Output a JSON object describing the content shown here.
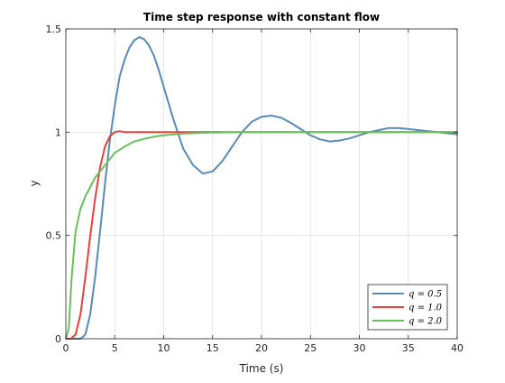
{
  "chart_data": {
    "type": "line",
    "title": "Time step response with constant flow",
    "xlabel": "Time (s)",
    "ylabel": "y",
    "xlim": [
      0,
      40
    ],
    "ylim": [
      0,
      1.5
    ],
    "xticks": [
      0,
      5,
      10,
      15,
      20,
      25,
      30,
      35,
      40
    ],
    "yticks": [
      0,
      0.5,
      1,
      1.5
    ],
    "xtick_labels": [
      "0",
      "5",
      "10",
      "15",
      "20",
      "25",
      "30",
      "35",
      "40"
    ],
    "ytick_labels": [
      "0",
      "0.5",
      "1",
      "1.5"
    ],
    "grid": true,
    "legend_position": "bottom-right",
    "series": [
      {
        "name": "q = 0.5",
        "color": "#5a8ab6",
        "x": [
          0,
          1.5,
          2,
          2.5,
          3,
          3.5,
          4,
          4.5,
          5,
          5.5,
          6,
          6.5,
          7,
          7.5,
          8,
          8.5,
          9,
          9.5,
          10,
          11,
          12,
          13,
          14,
          15,
          16,
          17,
          18,
          19,
          20,
          21,
          22,
          23,
          24,
          25,
          26,
          27,
          28,
          29,
          30,
          31,
          32,
          33,
          34,
          35,
          36,
          37,
          38,
          39,
          40
        ],
        "y": [
          0,
          0,
          0.02,
          0.12,
          0.3,
          0.52,
          0.75,
          0.96,
          1.13,
          1.27,
          1.35,
          1.41,
          1.445,
          1.46,
          1.45,
          1.42,
          1.37,
          1.3,
          1.22,
          1.06,
          0.92,
          0.84,
          0.8,
          0.81,
          0.86,
          0.93,
          1.0,
          1.05,
          1.075,
          1.08,
          1.07,
          1.045,
          1.015,
          0.985,
          0.965,
          0.955,
          0.96,
          0.97,
          0.985,
          1.0,
          1.01,
          1.02,
          1.02,
          1.015,
          1.01,
          1.005,
          1.0,
          0.995,
          0.99
        ]
      },
      {
        "name": "q = 1.0",
        "color": "#e8413c",
        "x": [
          0,
          0.5,
          1,
          1.5,
          2,
          2.5,
          3,
          3.5,
          4,
          4.5,
          5,
          5.5,
          6,
          6.5,
          7,
          8,
          10,
          15,
          20,
          25,
          30,
          35,
          40
        ],
        "y": [
          0,
          0,
          0.02,
          0.12,
          0.3,
          0.5,
          0.68,
          0.83,
          0.93,
          0.98,
          1.0,
          1.005,
          1.0,
          1.0,
          1.0,
          1.0,
          1.0,
          1.0,
          1.0,
          1.0,
          1.0,
          1.0,
          1.0
        ]
      },
      {
        "name": "q = 2.0",
        "color": "#6bbf5c",
        "x": [
          0,
          0.3,
          0.6,
          1,
          1.5,
          2,
          3,
          4,
          5,
          6,
          7,
          8,
          9,
          10,
          12,
          14,
          16,
          18,
          20,
          25,
          30,
          35,
          40
        ],
        "y": [
          0,
          0.05,
          0.3,
          0.52,
          0.63,
          0.69,
          0.78,
          0.84,
          0.9,
          0.93,
          0.955,
          0.968,
          0.978,
          0.985,
          0.993,
          0.997,
          0.999,
          1.0,
          1.0,
          1.0,
          1.0,
          1.0,
          1.0
        ]
      }
    ]
  }
}
